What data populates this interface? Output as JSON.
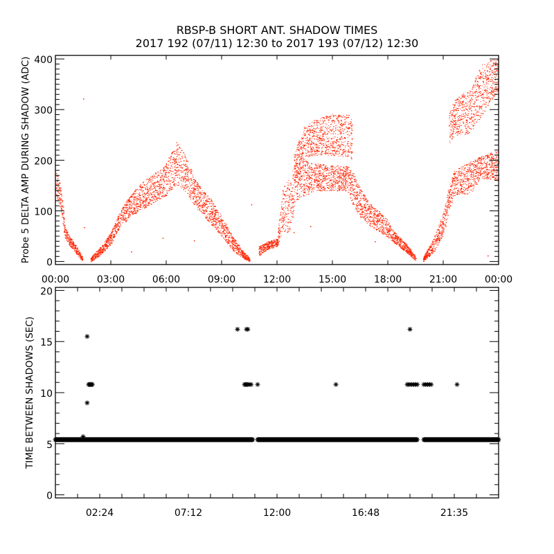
{
  "title": "RBSP-B SHORT ANT. SHADOW TIMES",
  "subtitle": "2017 192 (07/11) 12:30 to 2017 193 (07/12) 12:30",
  "colors": {
    "points_top": "#ff2200",
    "points_bottom": "#000000",
    "axes": "#000000"
  },
  "chart_data": [
    {
      "type": "scatter",
      "ylabel": "Probe 5 DELTA AMP DURING SHADOW (ADC)",
      "xlabel": "",
      "x_units": "hours",
      "xlim": [
        0,
        24
      ],
      "ylim": [
        -6,
        407
      ],
      "x_ticks": [
        0,
        3,
        6,
        9,
        12,
        15,
        18,
        21,
        24
      ],
      "x_tick_labels": [
        "00:00",
        "03:00",
        "06:00",
        "09:00",
        "12:00",
        "15:00",
        "18:00",
        "21:00",
        "00:00"
      ],
      "y_ticks": [
        0,
        100,
        200,
        300,
        400
      ],
      "y_tick_labels": [
        "0",
        "100",
        "200",
        "300",
        "400"
      ],
      "y_minor_step": 10,
      "grid": false,
      "marker": "dot",
      "point_bands": [
        {
          "points": [
            [
              0,
              130,
              180
            ],
            [
              0.3,
              100,
              150
            ],
            [
              0.5,
              45,
              70
            ],
            [
              0.8,
              30,
              48
            ],
            [
              1.2,
              12,
              28
            ],
            [
              1.45,
              0,
              8
            ]
          ]
        },
        {
          "points": [
            [
              1.9,
              0,
              8
            ],
            [
              2.5,
              15,
              32
            ],
            [
              3.0,
              35,
              58
            ],
            [
              3.5,
              70,
              100
            ],
            [
              4.0,
              85,
              130
            ],
            [
              4.5,
              100,
              150
            ],
            [
              5.0,
              110,
              165
            ],
            [
              5.5,
              120,
              178
            ],
            [
              6.0,
              130,
              195
            ],
            [
              6.5,
              150,
              240
            ],
            [
              7.0,
              140,
              215
            ],
            [
              7.5,
              110,
              165
            ],
            [
              8.0,
              90,
              140
            ],
            [
              8.5,
              70,
              120
            ],
            [
              9.0,
              50,
              90
            ],
            [
              9.5,
              25,
              55
            ],
            [
              10.0,
              10,
              28
            ],
            [
              10.5,
              0,
              6
            ]
          ]
        },
        {
          "points": [
            [
              11.0,
              10,
              30
            ],
            [
              11.5,
              25,
              40
            ],
            [
              12.0,
              30,
              45
            ],
            [
              12.3,
              55,
              150
            ],
            [
              12.7,
              60,
              165
            ],
            [
              13.0,
              120,
              200
            ],
            [
              13.5,
              130,
              200
            ],
            [
              14.0,
              140,
              195
            ],
            [
              15.0,
              140,
              190
            ],
            [
              15.8,
              140,
              190
            ],
            [
              16.1,
              110,
              175
            ],
            [
              16.5,
              88,
              143
            ],
            [
              17.0,
              70,
              115
            ],
            [
              17.5,
              60,
              100
            ],
            [
              18.0,
              48,
              80
            ],
            [
              18.5,
              32,
              52
            ],
            [
              19.0,
              18,
              35
            ],
            [
              19.5,
              2,
              10
            ]
          ]
        },
        {
          "points": [
            [
              12.9,
              150,
              215
            ],
            [
              13.5,
              205,
              270
            ],
            [
              14.0,
              210,
              280
            ],
            [
              15.0,
              210,
              292
            ],
            [
              15.9,
              205,
              290
            ],
            [
              16.05,
              200,
              280
            ]
          ]
        },
        {
          "points": [
            [
              19.9,
              0,
              8
            ],
            [
              20.5,
              20,
              50
            ],
            [
              21.0,
              50,
              97
            ],
            [
              21.3,
              100,
              150
            ],
            [
              21.6,
              130,
              180
            ],
            [
              22.5,
              135,
              198
            ],
            [
              23.0,
              165,
              208
            ],
            [
              24.0,
              160,
              220
            ]
          ]
        },
        {
          "points": [
            [
              21.3,
              230,
              290
            ],
            [
              21.6,
              250,
              320
            ],
            [
              22.0,
              250,
              330
            ],
            [
              22.5,
              255,
              340
            ],
            [
              23.0,
              285,
              390
            ],
            [
              24.0,
              340,
              405
            ]
          ]
        }
      ],
      "isolated_points": [
        [
          1.5,
          322
        ],
        [
          1.55,
          68
        ],
        [
          10.6,
          113
        ],
        [
          5.8,
          47
        ],
        [
          7.5,
          42
        ],
        [
          4.1,
          20
        ],
        [
          13.8,
          70
        ],
        [
          17.3,
          40
        ],
        [
          23.4,
          12
        ],
        [
          12.9,
          58
        ]
      ]
    },
    {
      "type": "scatter",
      "ylabel": "TIME BETWEEN SHADOWS (SEC)",
      "xlabel": "",
      "x_units": "hours",
      "xlim": [
        0,
        24
      ],
      "ylim": [
        -0.3,
        20.3
      ],
      "x_ticks_minor_step": 1.2,
      "x_ticks": [
        2.4,
        7.2,
        12.0,
        16.8,
        21.6
      ],
      "x_tick_labels": [
        "02:24",
        "07:12",
        "12:00",
        "16:48",
        "21:35"
      ],
      "y_ticks": [
        0,
        5,
        10,
        15,
        20
      ],
      "y_tick_labels": [
        "0",
        "5",
        "10",
        "15",
        "20"
      ],
      "y_minor_step": 1,
      "grid": false,
      "marker": "asterisk",
      "baseline_segments": [
        {
          "start": 0.0,
          "end": 10.7,
          "value": 5.4
        },
        {
          "start": 10.95,
          "end": 19.6,
          "value": 5.4
        },
        {
          "start": 19.95,
          "end": 24.0,
          "value": 5.4
        }
      ],
      "points": [
        [
          1.5,
          5.7
        ],
        [
          1.72,
          9.0
        ],
        [
          1.72,
          15.5
        ],
        [
          1.8,
          10.8
        ],
        [
          1.85,
          10.8
        ],
        [
          1.9,
          10.8
        ],
        [
          1.95,
          10.8
        ],
        [
          2.0,
          10.8
        ],
        [
          9.86,
          16.2
        ],
        [
          10.35,
          16.2
        ],
        [
          10.42,
          16.2
        ],
        [
          10.24,
          10.8
        ],
        [
          10.3,
          10.8
        ],
        [
          10.36,
          10.8
        ],
        [
          10.42,
          10.8
        ],
        [
          10.5,
          10.8
        ],
        [
          10.6,
          10.8
        ],
        [
          10.95,
          10.8
        ],
        [
          15.19,
          10.8
        ],
        [
          19.2,
          16.2
        ],
        [
          19.05,
          10.8
        ],
        [
          19.12,
          10.8
        ],
        [
          19.2,
          10.8
        ],
        [
          19.3,
          10.8
        ],
        [
          19.4,
          10.8
        ],
        [
          19.5,
          10.8
        ],
        [
          19.6,
          10.8
        ],
        [
          19.95,
          10.8
        ],
        [
          20.05,
          10.8
        ],
        [
          20.15,
          10.8
        ],
        [
          20.25,
          10.8
        ],
        [
          20.35,
          10.8
        ],
        [
          21.75,
          10.8
        ]
      ]
    }
  ]
}
